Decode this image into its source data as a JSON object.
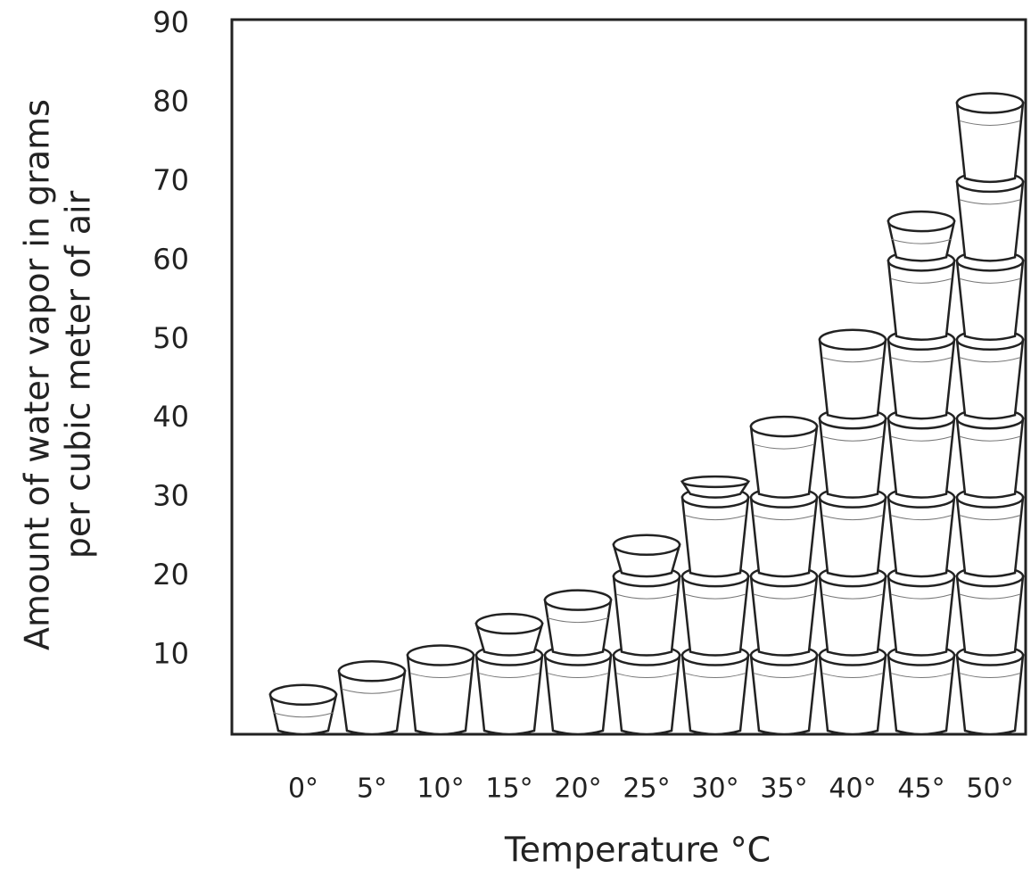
{
  "chart_data": {
    "type": "pictogram",
    "y_label": [
      "Amount of water vapor in grams",
      "per cubic meter of air"
    ],
    "x_label": "Temperature °C",
    "categories": [
      "0°",
      "5°",
      "10°",
      "15°",
      "20°",
      "25°",
      "30°",
      "35°",
      "40°",
      "45°",
      "50°"
    ],
    "values": [
      5,
      8,
      10,
      14,
      17,
      24,
      32,
      39,
      50,
      65,
      80
    ],
    "ylim": [
      0,
      90
    ],
    "yticks": [
      10,
      20,
      30,
      40,
      50,
      60,
      70,
      80,
      90
    ]
  }
}
